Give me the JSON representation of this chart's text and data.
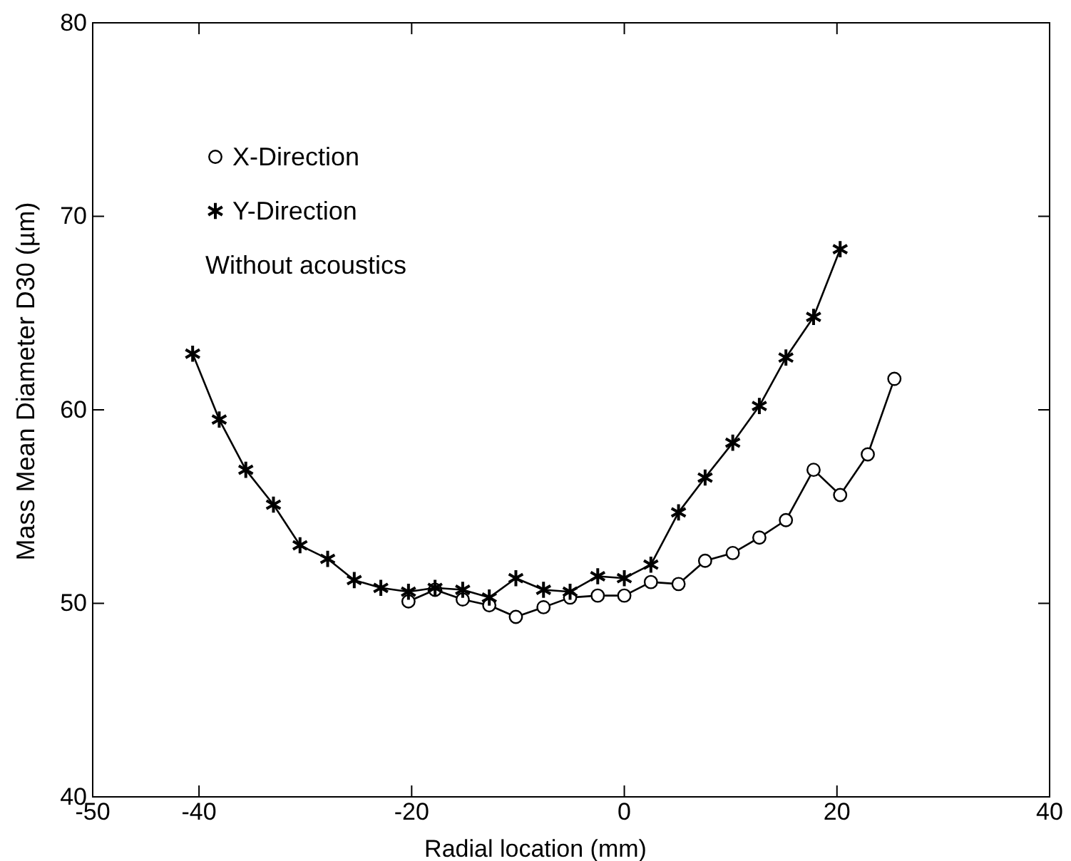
{
  "chart_data": {
    "type": "line",
    "xlabel": "Radial location (mm)",
    "ylabel": "Mass Mean Diameter D30 (µm)",
    "xlim": [
      -50,
      40
    ],
    "xticks": [
      -50,
      -40,
      -20,
      0,
      20,
      40
    ],
    "ylim": [
      40,
      80
    ],
    "yticks": [
      40,
      50,
      60,
      70,
      80
    ],
    "grid": false,
    "legend": "top left",
    "line_style": "solid",
    "series": [
      {
        "name": "X-Direction",
        "color": "#000000",
        "marker": "circle",
        "x": [
          -20.3,
          -17.8,
          -15.2,
          -12.7,
          -10.2,
          -7.6,
          -5.1,
          -2.5,
          0,
          2.5,
          5.1,
          7.6,
          10.2,
          12.7,
          15.2,
          17.8,
          20.3,
          22.9,
          25.4
        ],
        "values": [
          50.1,
          50.7,
          50.2,
          49.9,
          49.3,
          49.8,
          50.3,
          50.4,
          50.4,
          51.1,
          51.0,
          52.2,
          52.6,
          53.4,
          54.3,
          56.9,
          55.6,
          57.7,
          61.6
        ]
      },
      {
        "name": "Y-Direction",
        "color": "#000000",
        "marker": "cross",
        "x": [
          -40.6,
          -38.1,
          -35.6,
          -33,
          -30.5,
          -27.9,
          -25.4,
          -22.9,
          -20.3,
          -17.8,
          -15.2,
          -12.7,
          -10.2,
          -7.6,
          -5.1,
          -2.5,
          0,
          2.5,
          5.1,
          7.6,
          10.2,
          12.7,
          15.2,
          17.8,
          20.3
        ],
        "values": [
          62.9,
          59.5,
          56.9,
          55.1,
          53.0,
          52.3,
          51.2,
          50.8,
          50.6,
          50.8,
          50.7,
          50.3,
          51.3,
          50.7,
          50.6,
          51.4,
          51.3,
          52.0,
          54.7,
          56.5,
          58.3,
          60.2,
          62.7,
          64.8,
          68.3
        ]
      }
    ],
    "annotations": [
      "Without acoustics"
    ]
  }
}
